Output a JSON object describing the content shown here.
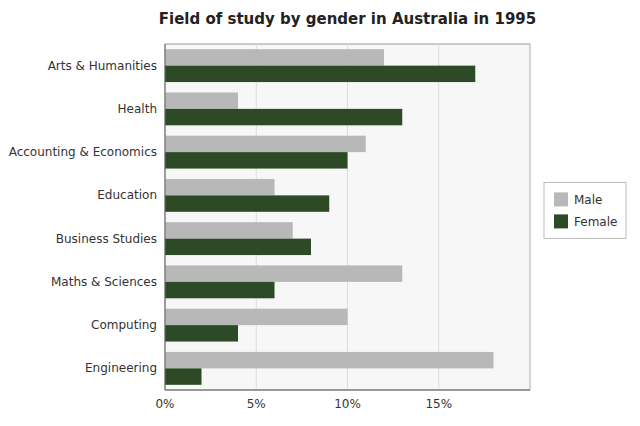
{
  "chart_data": {
    "type": "bar",
    "orientation": "horizontal",
    "title": "Field of study by gender in Australia in 1995",
    "categories": [
      "Arts & Humanities",
      "Health",
      "Accounting & Economics",
      "Education",
      "Business Studies",
      "Maths & Sciences",
      "Computing",
      "Engineering"
    ],
    "series": [
      {
        "name": "Male",
        "color": "#b8b8b8",
        "values": [
          12,
          4,
          11,
          6,
          7,
          13,
          10,
          18
        ]
      },
      {
        "name": "Female",
        "color": "#2b4a25",
        "values": [
          17,
          13,
          10,
          9,
          8,
          6,
          4,
          2
        ]
      }
    ],
    "xlim": [
      0,
      20
    ],
    "xticks": [
      {
        "value": 0,
        "label": "0%"
      },
      {
        "value": 5,
        "label": "5%"
      },
      {
        "value": 10,
        "label": "10%"
      },
      {
        "value": 15,
        "label": "15%"
      },
      {
        "value": 20,
        "label": null
      }
    ],
    "grid": true,
    "legend": "right"
  }
}
